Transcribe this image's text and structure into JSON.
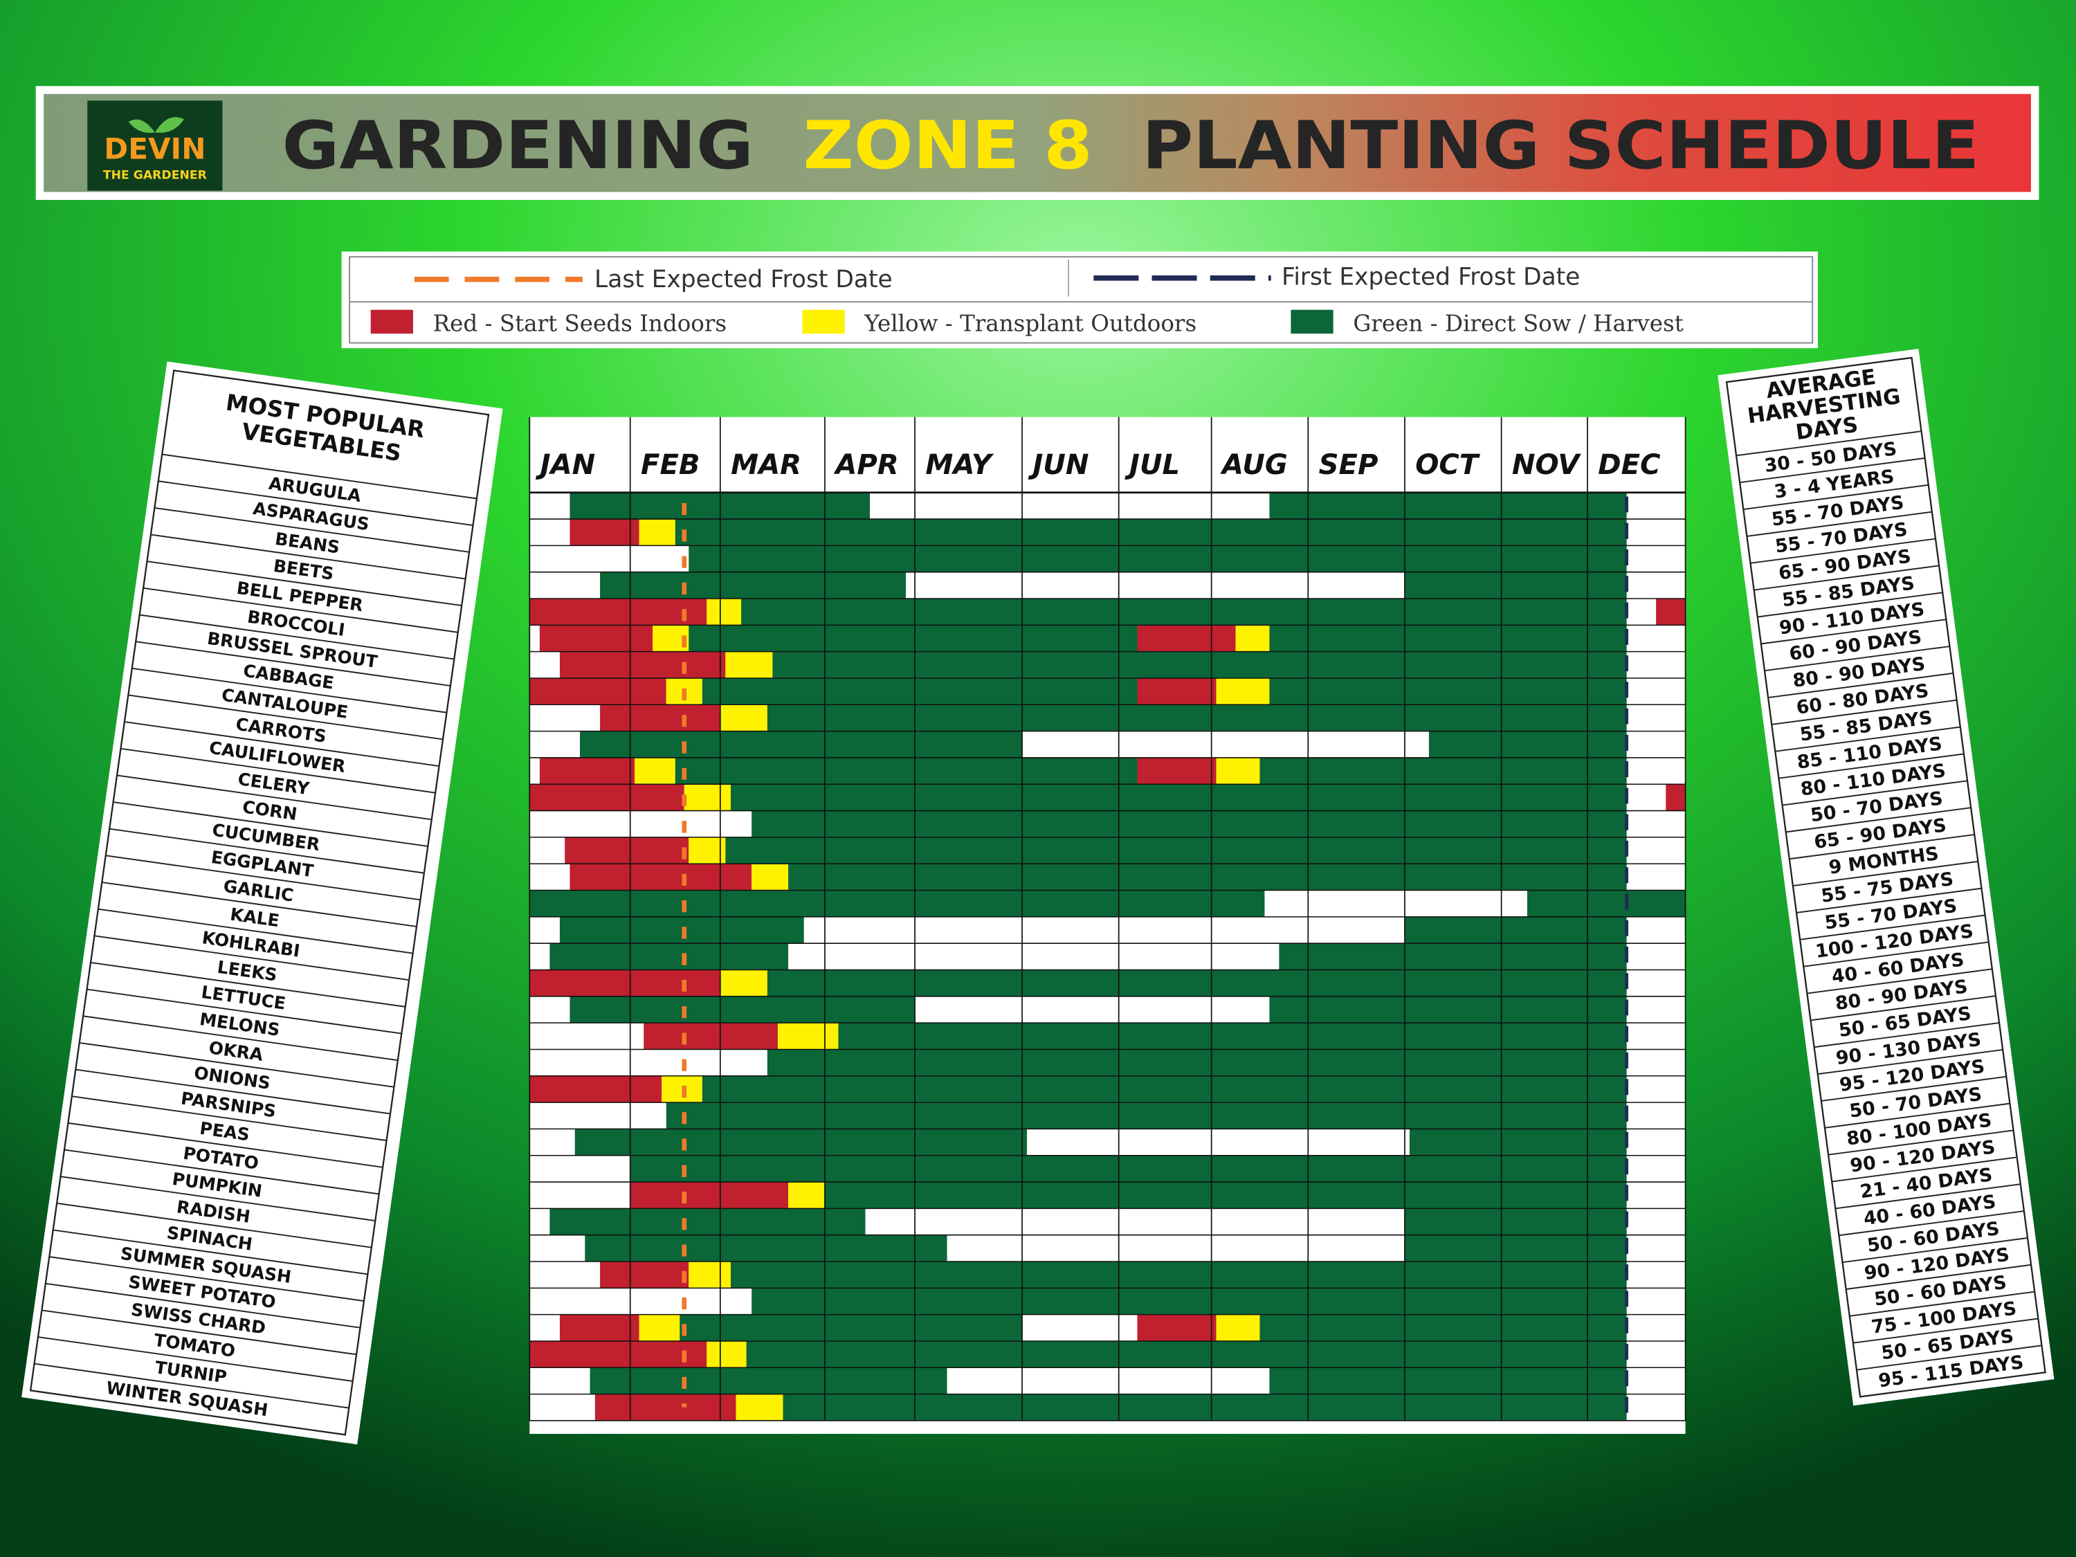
{
  "header": {
    "logo_top": "DEVIN",
    "logo_bottom": "THE GARDENER",
    "title_parts": [
      "GARDENING",
      "ZONE 8",
      "PLANTING SCHEDULE"
    ]
  },
  "legend": {
    "last_frost": {
      "label": "Last Expected Frost Date",
      "color": "#f07a2a"
    },
    "first_frost": {
      "label": "First Expected Frost Date",
      "color": "#1f2a55"
    },
    "items": [
      {
        "label": "Red - Start Seeds Indoors",
        "color": "#c1202f"
      },
      {
        "label": "Yellow - Transplant Outdoors",
        "color": "#fff200"
      },
      {
        "label": "Green - Direct Sow / Harvest",
        "color": "#0b6638"
      }
    ]
  },
  "vegetables": {
    "title": [
      "MOST POPULAR",
      "VEGETABLES"
    ],
    "items": [
      "ARUGULA",
      "ASPARAGUS",
      "BEANS",
      "BEETS",
      "BELL PEPPER",
      "BROCCOLI",
      "BRUSSEL SPROUT",
      "CABBAGE",
      "CANTALOUPE",
      "CARROTS",
      "CAULIFLOWER",
      "CELERY",
      "CORN",
      "CUCUMBER",
      "EGGPLANT",
      "GARLIC",
      "KALE",
      "KOHLRABI",
      "LEEKS",
      "LETTUCE",
      "MELONS",
      "OKRA",
      "ONIONS",
      "PARSNIPS",
      "PEAS",
      "POTATO",
      "PUMPKIN",
      "RADISH",
      "SPINACH",
      "SUMMER SQUASH",
      "SWEET POTATO",
      "SWISS CHARD",
      "TOMATO",
      "TURNIP",
      "WINTER SQUASH"
    ]
  },
  "harvest": {
    "title": [
      "AVERAGE",
      "HARVESTING",
      "DAYS"
    ],
    "items": [
      "30 - 50 DAYS",
      "3 - 4 YEARS",
      "55 - 70 DAYS",
      "55 - 70 DAYS",
      "65 - 90 DAYS",
      "55 - 85 DAYS",
      "90 - 110 DAYS",
      "60 - 90 DAYS",
      "80 - 90 DAYS",
      "60 - 80 DAYS",
      "55 - 85 DAYS",
      "85 - 110 DAYS",
      "80 - 110 DAYS",
      "50 - 70 DAYS",
      "65 - 90 DAYS",
      "9 MONTHS",
      "55 - 75 DAYS",
      "55 - 70 DAYS",
      "100 - 120 DAYS",
      "40 - 60 DAYS",
      "80 - 90 DAYS",
      "50 - 65 DAYS",
      "90 - 130 DAYS",
      "95 - 120 DAYS",
      "50 - 70 DAYS",
      "80 - 100 DAYS",
      "90 - 120 DAYS",
      "21 - 40 DAYS",
      "40 - 60 DAYS",
      "50 - 60 DAYS",
      "90 - 120 DAYS",
      "50 - 60 DAYS",
      "75 - 100 DAYS",
      "50 - 65 DAYS",
      "95 - 115 DAYS"
    ]
  },
  "chart_data": {
    "type": "gantt",
    "categories": [
      "JAN",
      "FEB",
      "MAR",
      "APR",
      "MAY",
      "JUN",
      "JUL",
      "AUG",
      "SEP",
      "OCT",
      "NOV",
      "DEC"
    ],
    "xlim": [
      0,
      12
    ],
    "last_frost": 1.6,
    "first_frost": 11.4,
    "rows": [
      {
        "green": [
          [
            0.4,
            3.5
          ],
          [
            7.6,
            11.4
          ]
        ]
      },
      {
        "red": [
          [
            0.4,
            1.1
          ]
        ],
        "yellow": [
          [
            1.1,
            1.5
          ]
        ],
        "green": [
          [
            1.5,
            11.4
          ]
        ]
      },
      {
        "green": [
          [
            1.65,
            11.4
          ]
        ]
      },
      {
        "green": [
          [
            0.7,
            3.9
          ],
          [
            9.0,
            11.4
          ]
        ]
      },
      {
        "red": [
          [
            0,
            1.85
          ],
          [
            11.7,
            12
          ]
        ],
        "yellow": [
          [
            1.85,
            2.2
          ]
        ],
        "green": [
          [
            2.2,
            11.4
          ]
        ]
      },
      {
        "red": [
          [
            0.1,
            1.25
          ],
          [
            6.2,
            7.25
          ]
        ],
        "yellow": [
          [
            1.25,
            1.65
          ],
          [
            7.25,
            7.6
          ]
        ],
        "green": [
          [
            1.65,
            6.2
          ],
          [
            7.6,
            11.4
          ]
        ]
      },
      {
        "red": [
          [
            0.3,
            2.05
          ]
        ],
        "yellow": [
          [
            2.05,
            2.5
          ]
        ],
        "green": [
          [
            2.5,
            11.4
          ]
        ]
      },
      {
        "red": [
          [
            0,
            1.4
          ],
          [
            6.2,
            7.05
          ]
        ],
        "yellow": [
          [
            1.4,
            1.8
          ],
          [
            7.05,
            7.6
          ]
        ],
        "green": [
          [
            1.8,
            6.2
          ],
          [
            7.6,
            11.4
          ]
        ]
      },
      {
        "red": [
          [
            0.7,
            2.0
          ]
        ],
        "yellow": [
          [
            2.0,
            2.45
          ]
        ],
        "green": [
          [
            2.45,
            11.4
          ]
        ]
      },
      {
        "green": [
          [
            0.5,
            5.0
          ],
          [
            9.25,
            11.4
          ]
        ]
      },
      {
        "red": [
          [
            0.1,
            1.05
          ],
          [
            6.2,
            7.05
          ]
        ],
        "yellow": [
          [
            1.05,
            1.5
          ],
          [
            7.05,
            7.5
          ]
        ],
        "green": [
          [
            1.5,
            6.2
          ],
          [
            7.5,
            11.4
          ]
        ]
      },
      {
        "red": [
          [
            0,
            1.6
          ],
          [
            11.8,
            12
          ]
        ],
        "yellow": [
          [
            1.6,
            2.1
          ]
        ],
        "green": [
          [
            2.1,
            11.4
          ]
        ]
      },
      {
        "green": [
          [
            2.3,
            11.4
          ]
        ]
      },
      {
        "red": [
          [
            0.35,
            1.65
          ]
        ],
        "yellow": [
          [
            1.65,
            2.05
          ]
        ],
        "green": [
          [
            2.05,
            11.4
          ]
        ]
      },
      {
        "red": [
          [
            0.4,
            2.3
          ]
        ],
        "yellow": [
          [
            2.3,
            2.65
          ]
        ],
        "green": [
          [
            2.65,
            11.4
          ]
        ]
      },
      {
        "green": [
          [
            0,
            7.55
          ],
          [
            10.3,
            12
          ]
        ]
      },
      {
        "green": [
          [
            0.3,
            2.8
          ],
          [
            9.0,
            11.4
          ]
        ]
      },
      {
        "green": [
          [
            0.2,
            2.65
          ],
          [
            7.7,
            11.4
          ]
        ]
      },
      {
        "red": [
          [
            0,
            2.0
          ]
        ],
        "yellow": [
          [
            2.0,
            2.45
          ]
        ],
        "green": [
          [
            2.45,
            11.4
          ]
        ]
      },
      {
        "green": [
          [
            0.4,
            4.0
          ],
          [
            7.6,
            11.4
          ]
        ]
      },
      {
        "red": [
          [
            1.15,
            2.55
          ]
        ],
        "yellow": [
          [
            2.55,
            3.15
          ]
        ],
        "green": [
          [
            3.15,
            11.4
          ]
        ]
      },
      {
        "green": [
          [
            2.45,
            11.4
          ]
        ]
      },
      {
        "red": [
          [
            0,
            1.35
          ]
        ],
        "yellow": [
          [
            1.35,
            1.8
          ]
        ],
        "green": [
          [
            1.8,
            11.4
          ]
        ]
      },
      {
        "green": [
          [
            1.4,
            11.4
          ]
        ]
      },
      {
        "green": [
          [
            0.45,
            5.05
          ],
          [
            9.05,
            11.4
          ]
        ]
      },
      {
        "green": [
          [
            1.0,
            11.4
          ]
        ]
      },
      {
        "red": [
          [
            1.0,
            2.65
          ]
        ],
        "yellow": [
          [
            2.65,
            3.0
          ]
        ],
        "green": [
          [
            3.0,
            11.4
          ]
        ]
      },
      {
        "green": [
          [
            0.2,
            3.45
          ],
          [
            9.0,
            11.4
          ]
        ]
      },
      {
        "green": [
          [
            0.55,
            4.3
          ],
          [
            9.0,
            11.4
          ]
        ]
      },
      {
        "red": [
          [
            0.7,
            1.65
          ]
        ],
        "yellow": [
          [
            1.65,
            2.1
          ]
        ],
        "green": [
          [
            2.1,
            11.4
          ]
        ]
      },
      {
        "green": [
          [
            2.3,
            11.4
          ]
        ]
      },
      {
        "red": [
          [
            0.3,
            1.1
          ],
          [
            6.2,
            7.05
          ]
        ],
        "yellow": [
          [
            1.1,
            1.55
          ],
          [
            7.05,
            7.5
          ]
        ],
        "green": [
          [
            1.55,
            5.0
          ],
          [
            7.5,
            11.4
          ]
        ]
      },
      {
        "red": [
          [
            0,
            1.85
          ]
        ],
        "yellow": [
          [
            1.85,
            2.25
          ]
        ],
        "green": [
          [
            2.25,
            11.4
          ]
        ]
      },
      {
        "green": [
          [
            0.6,
            4.3
          ],
          [
            7.6,
            11.4
          ]
        ]
      },
      {
        "red": [
          [
            0.65,
            2.15
          ]
        ],
        "yellow": [
          [
            2.15,
            2.6
          ]
        ],
        "green": [
          [
            2.6,
            11.4
          ]
        ]
      }
    ]
  }
}
